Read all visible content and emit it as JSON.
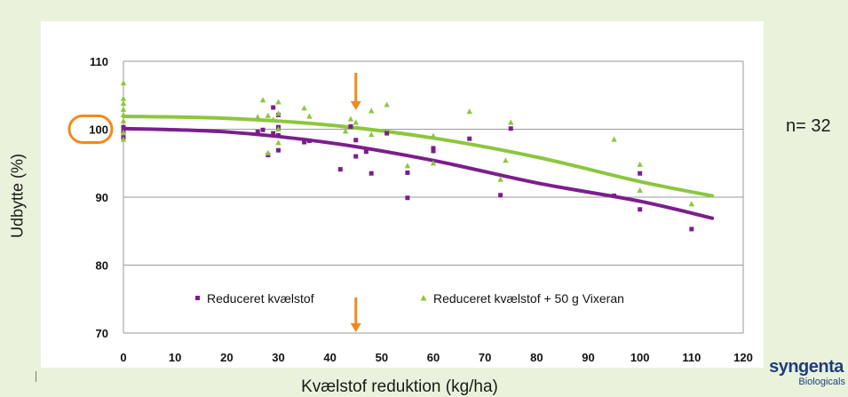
{
  "chart_data": {
    "type": "scatter",
    "xlabel": "Kvælstof reduktion (kg/ha)",
    "ylabel": "Udbytte (%)",
    "xlim": [
      0,
      120
    ],
    "ylim": [
      70,
      110
    ],
    "xticks": [
      "0",
      "10",
      "20",
      "30",
      "40",
      "50",
      "60",
      "70",
      "80",
      "90",
      "100",
      "110",
      "120"
    ],
    "yticks": [
      "70",
      "80",
      "90",
      "100",
      "110"
    ],
    "grid": "horizontal",
    "legend_position": "bottom-inside",
    "annotation_n": "n= 32",
    "highlight_tick": "100",
    "arrow_x": 45,
    "series": [
      {
        "name": "Reduceret kvælstof",
        "marker": "square",
        "color": "#7b1e8c",
        "points": [
          [
            0,
            100.3
          ],
          [
            0,
            99.6
          ],
          [
            0,
            98.8
          ],
          [
            26,
            99.6
          ],
          [
            27,
            99.9
          ],
          [
            28,
            96.2
          ],
          [
            29,
            103.2
          ],
          [
            29,
            99.4
          ],
          [
            30,
            102.1
          ],
          [
            30,
            100.3
          ],
          [
            30,
            99.1
          ],
          [
            30,
            96.9
          ],
          [
            35,
            98.1
          ],
          [
            36,
            98.3
          ],
          [
            42,
            94.1
          ],
          [
            44,
            100.4
          ],
          [
            45,
            98.4
          ],
          [
            45,
            96.0
          ],
          [
            47,
            96.7
          ],
          [
            48,
            93.5
          ],
          [
            51,
            99.4
          ],
          [
            55,
            93.6
          ],
          [
            55,
            89.9
          ],
          [
            60,
            97.2
          ],
          [
            60,
            96.8
          ],
          [
            67,
            98.6
          ],
          [
            73,
            90.3
          ],
          [
            75,
            100.1
          ],
          [
            95,
            90.2
          ],
          [
            100,
            93.5
          ],
          [
            100,
            88.2
          ],
          [
            110,
            85.3
          ]
        ],
        "fit": [
          [
            0,
            100.1
          ],
          [
            20,
            99.6
          ],
          [
            40,
            98.0
          ],
          [
            60,
            95.4
          ],
          [
            80,
            92.1
          ],
          [
            100,
            89.4
          ],
          [
            114,
            86.9
          ]
        ]
      },
      {
        "name": "Reduceret kvælstof + 50 g Vixeran",
        "marker": "triangle",
        "color": "#8cc63f",
        "points": [
          [
            0,
            106.8
          ],
          [
            0,
            104.5
          ],
          [
            0,
            103.8
          ],
          [
            0,
            102.9
          ],
          [
            0,
            102.1
          ],
          [
            0,
            101.2
          ],
          [
            0,
            99.5
          ],
          [
            0,
            98.5
          ],
          [
            26,
            101.8
          ],
          [
            27,
            104.3
          ],
          [
            28,
            96.5
          ],
          [
            28,
            102.0
          ],
          [
            29,
            101.4
          ],
          [
            30,
            104.0
          ],
          [
            30,
            102.3
          ],
          [
            30,
            100.0
          ],
          [
            30,
            98.0
          ],
          [
            35,
            103.1
          ],
          [
            36,
            101.9
          ],
          [
            43,
            99.7
          ],
          [
            44,
            101.5
          ],
          [
            45,
            101.0
          ],
          [
            48,
            102.7
          ],
          [
            48,
            99.2
          ],
          [
            51,
            103.6
          ],
          [
            55,
            94.6
          ],
          [
            60,
            99.0
          ],
          [
            60,
            95.0
          ],
          [
            67,
            102.6
          ],
          [
            73,
            92.6
          ],
          [
            74,
            95.4
          ],
          [
            75,
            101.0
          ],
          [
            95,
            98.5
          ],
          [
            100,
            94.8
          ],
          [
            100,
            91.0
          ],
          [
            110,
            89.0
          ]
        ],
        "fit": [
          [
            0,
            101.9
          ],
          [
            20,
            101.6
          ],
          [
            40,
            100.6
          ],
          [
            60,
            98.7
          ],
          [
            80,
            95.9
          ],
          [
            100,
            92.3
          ],
          [
            114,
            90.2
          ]
        ]
      }
    ]
  },
  "logo": {
    "word": "syngenta",
    "sub": "Biologicals"
  },
  "colors": {
    "background": "#e9f3dc",
    "arrow": "#f08a1c",
    "highlight": "#f08a1c",
    "grid": "#9a9a9a"
  }
}
